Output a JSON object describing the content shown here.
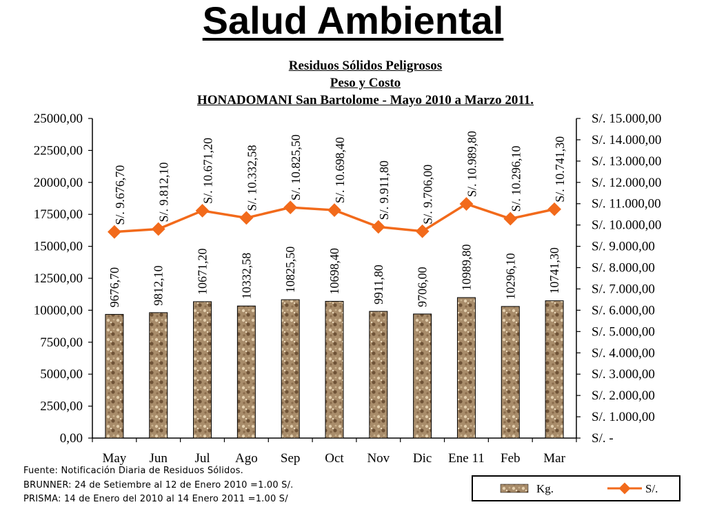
{
  "slide": {
    "title": "Salud Ambiental"
  },
  "chart_data": {
    "type": "bar",
    "title_lines": [
      "Residuos Sólidos Peligrosos",
      "Peso y Costo",
      "HONADOMANI San Bartolome -  Mayo 2010 a Marzo 2011."
    ],
    "categories": [
      "May",
      "Jun",
      "Jul",
      "Ago",
      "Sep",
      "Oct",
      "Nov",
      "Dic",
      "Ene 11",
      "Feb",
      "Mar"
    ],
    "series": [
      {
        "name": "Kg.",
        "type": "bar",
        "axis": "left",
        "values": [
          9676.7,
          9812.1,
          10671.2,
          10332.58,
          10825.5,
          10698.4,
          9911.8,
          9706.0,
          10989.8,
          10296.1,
          10741.3
        ],
        "labels": [
          "9676,70",
          "9812,10",
          "10671,20",
          "10332,58",
          "10825,50",
          "10698,40",
          "9911,80",
          "9706,00",
          "10989,80",
          "10296,10",
          "10741,30"
        ]
      },
      {
        "name": "S/.",
        "type": "line",
        "axis": "right",
        "values": [
          9676.7,
          9812.1,
          10671.2,
          10332.58,
          10825.5,
          10698.4,
          9911.8,
          9706.0,
          10989.8,
          10296.1,
          10741.3
        ],
        "labels": [
          "S/. 9.676,70",
          "S/. 9.812,10",
          "S/. 10.671,20",
          "S/. 10.332,58",
          "S/. 10.825,50",
          "S/. 10.698,40",
          "S/. 9.911,80",
          "S/. 9.706,00",
          "S/. 10.989,80",
          "S/. 10.296,10",
          "S/. 10.741,30"
        ]
      }
    ],
    "y_left": {
      "ylim": [
        0,
        25000
      ],
      "ticks": [
        0,
        2500,
        5000,
        7500,
        10000,
        12500,
        15000,
        17500,
        20000,
        22500,
        25000
      ],
      "tick_labels": [
        "0,00",
        "2500,00",
        "5000,00",
        "7500,00",
        "10000,00",
        "12500,00",
        "15000,00",
        "17500,00",
        "20000,00",
        "22500,00",
        "25000,00"
      ]
    },
    "y_right": {
      "ylim": [
        0,
        15000
      ],
      "ticks": [
        0,
        1000,
        2000,
        3000,
        4000,
        5000,
        6000,
        7000,
        8000,
        9000,
        10000,
        11000,
        12000,
        13000,
        14000,
        15000
      ],
      "tick_labels": [
        "S/. -",
        "S/. 1.000,00",
        "S/. 2.000,00",
        "S/. 3.000,00",
        "S/. 4.000,00",
        "S/. 5.000,00",
        "S/. 6.000,00",
        "S/. 7.000,00",
        "S/. 8.000,00",
        "S/. 9.000,00",
        "S/. 10.000,00",
        "S/. 11.000,00",
        "S/. 12.000,00",
        "S/. 13.000,00",
        "S/. 14.000,00",
        "S/. 15.000,00"
      ]
    },
    "grid": false,
    "legend_placement": "bottom-right",
    "colors": {
      "bar_fill": "#a88c6a",
      "bar_dark": "#6e5236",
      "bar_light": "#e3cfae",
      "line": "#f26a1b"
    }
  },
  "footer": {
    "lines": [
      "Fuente: Notificación Diaria de Residuos Sólidos.",
      "BRUNNER: 24 de Setiembre al 12 de Enero 2010 =1.00 S/.",
      "PRISMA: 14 de Enero del 2010 al 14 Enero 2011    =1.00 S/"
    ]
  }
}
